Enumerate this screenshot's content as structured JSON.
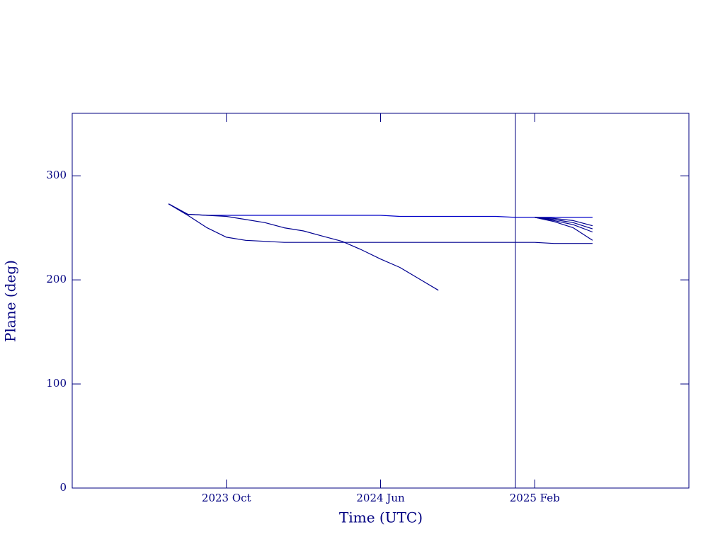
{
  "chart_data": {
    "type": "line",
    "xlabel": "Time (UTC)",
    "ylabel": "Plane (deg)",
    "x": [
      "2023-07",
      "2023-08",
      "2023-09",
      "2023-10",
      "2023-11",
      "2023-12",
      "2024-01",
      "2024-02",
      "2024-03",
      "2024-04",
      "2024-05",
      "2024-06",
      "2024-07",
      "2024-08",
      "2024-09",
      "2024-10",
      "2024-11",
      "2024-12",
      "2025-01",
      "2025-02",
      "2025-03",
      "2025-04",
      "2025-05"
    ],
    "series": [
      {
        "color": "#0000c8",
        "values": [
          273,
          263,
          262,
          262,
          262,
          262,
          262,
          262,
          262,
          262,
          262,
          262,
          261,
          261,
          261,
          261,
          261,
          261,
          260,
          260,
          260,
          260,
          260
        ]
      },
      {
        "color": "#000090",
        "values": [
          273,
          262,
          250,
          241,
          238,
          237,
          236,
          236,
          236,
          236,
          236,
          236,
          236,
          236,
          236,
          236,
          236,
          236,
          236,
          236,
          235,
          235,
          235
        ]
      },
      {
        "color": "#000090",
        "values": [
          273,
          263,
          262,
          261,
          258,
          255,
          250,
          247,
          242,
          237,
          229,
          220,
          212,
          201,
          190,
          null,
          null,
          null,
          null,
          null,
          null,
          null,
          null
        ]
      },
      {
        "color": "#000090",
        "values": [
          null,
          null,
          null,
          null,
          null,
          null,
          null,
          null,
          null,
          null,
          null,
          null,
          null,
          null,
          null,
          null,
          null,
          null,
          null,
          260,
          259,
          257,
          252
        ]
      },
      {
        "color": "#000090",
        "values": [
          null,
          null,
          null,
          null,
          null,
          null,
          null,
          null,
          null,
          null,
          null,
          null,
          null,
          null,
          null,
          null,
          null,
          null,
          null,
          260,
          258,
          255,
          249
        ]
      },
      {
        "color": "#000090",
        "values": [
          null,
          null,
          null,
          null,
          null,
          null,
          null,
          null,
          null,
          null,
          null,
          null,
          null,
          null,
          null,
          null,
          null,
          null,
          null,
          260,
          257,
          253,
          246
        ]
      },
      {
        "color": "#000090",
        "values": [
          null,
          null,
          null,
          null,
          null,
          null,
          null,
          null,
          null,
          null,
          null,
          null,
          null,
          null,
          null,
          null,
          null,
          null,
          null,
          260,
          256,
          250,
          238
        ]
      }
    ],
    "vline": "2025-01",
    "xlim": [
      "2023-02",
      "2025-10"
    ],
    "xticks": [
      {
        "value": "2023-10",
        "label": "2023 Oct"
      },
      {
        "value": "2024-06",
        "label": "2024 Jun"
      },
      {
        "value": "2025-02",
        "label": "2025 Feb"
      }
    ],
    "ylim": [
      0,
      360
    ],
    "yticks": [
      0,
      100,
      200,
      300
    ]
  }
}
